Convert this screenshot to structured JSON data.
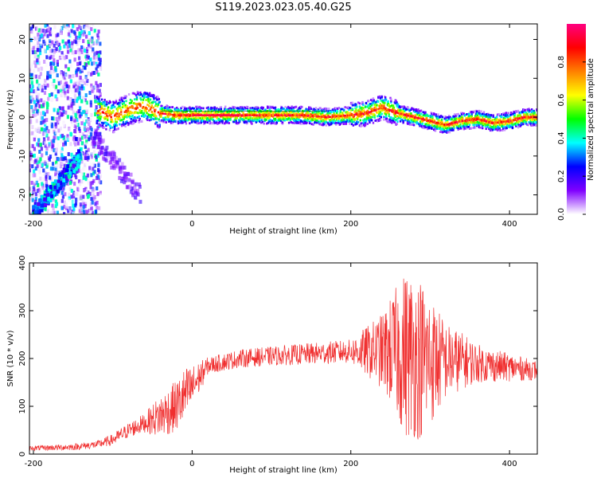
{
  "page": {
    "title": "S119.2023.023.05.40.G25"
  },
  "chart_data": [
    {
      "type": "heatmap",
      "title": "",
      "xlabel": "Height of straight line (km)",
      "ylabel": "Frequency (Hz)",
      "xlim": [
        -205,
        435
      ],
      "ylim": [
        -25,
        24
      ],
      "x_ticks": [
        -200,
        0,
        200,
        400
      ],
      "y_ticks": [
        -20,
        -10,
        0,
        10,
        20
      ],
      "colorbar": {
        "label": "Normalized spectral amplitude",
        "range": [
          0.0,
          1.0
        ],
        "ticks": [
          0.0,
          0.2,
          0.4,
          0.6,
          0.8
        ],
        "colormap": [
          "#ffffff",
          "#8000ff",
          "#0000ff",
          "#00ffff",
          "#00ff00",
          "#ffff00",
          "#ff8000",
          "#ff0000",
          "#ff0080"
        ]
      },
      "ridge": {
        "x": [
          -120,
          -100,
          -80,
          -60,
          -40,
          -20,
          0,
          20,
          60,
          100,
          140,
          170,
          200,
          220,
          240,
          260,
          280,
          300,
          320,
          340,
          360,
          380,
          400,
          420,
          435
        ],
        "y": [
          2,
          0,
          2,
          3,
          1,
          0.5,
          0.5,
          0.5,
          0.5,
          0.5,
          0.5,
          0,
          0.5,
          1,
          2.5,
          1,
          0,
          -1,
          -2,
          -1,
          -0.5,
          -1.5,
          -1,
          0,
          0
        ]
      },
      "grid": false
    },
    {
      "type": "line",
      "title": "",
      "xlabel": "Height of straight line (km)",
      "ylabel": "SNR (10 * v/v)",
      "xlim": [
        -205,
        435
      ],
      "ylim": [
        0,
        400
      ],
      "x_ticks": [
        -200,
        0,
        200,
        400
      ],
      "y_ticks": [
        0,
        100,
        200,
        300,
        400
      ],
      "color": "#f03030",
      "trend": {
        "x": [
          -205,
          -150,
          -120,
          -100,
          -80,
          -60,
          -40,
          -20,
          0,
          20,
          60,
          100,
          150,
          200,
          250,
          270,
          290,
          310,
          340,
          380,
          435
        ],
        "y": [
          12,
          15,
          20,
          30,
          50,
          65,
          80,
          100,
          140,
          185,
          200,
          205,
          210,
          215,
          215,
          210,
          200,
          195,
          195,
          185,
          175
        ]
      },
      "noise_amplitude": {
        "x": [
          -205,
          -120,
          -60,
          -40,
          -10,
          20,
          100,
          200,
          240,
          270,
          290,
          320,
          360,
          435
        ],
        "y": [
          5,
          8,
          20,
          45,
          60,
          18,
          20,
          25,
          80,
          180,
          170,
          80,
          40,
          20
        ]
      },
      "grid": false
    }
  ]
}
